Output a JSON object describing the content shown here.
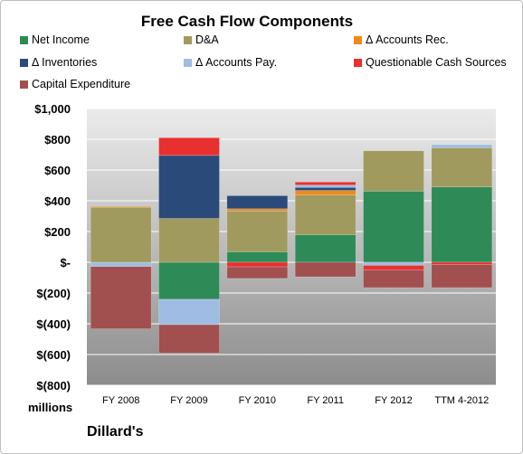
{
  "chart_data": {
    "type": "bar",
    "stacked": true,
    "title": "Free Cash Flow Components",
    "units_label": "millions",
    "source_label": "Dillard's",
    "categories": [
      "FY 2008",
      "FY 2009",
      "FY 2010",
      "FY 2011",
      "FY 2012",
      "TTM 4-2012"
    ],
    "ylim": [
      -800,
      1000
    ],
    "yticks": [
      -800,
      -600,
      -400,
      -200,
      0,
      200,
      400,
      600,
      800,
      1000
    ],
    "ytick_labels": [
      "$(800)",
      "$(600)",
      "$(400)",
      "$(200)",
      "$-",
      "$200",
      "$400",
      "$600",
      "$800",
      "$1,000"
    ],
    "grid": true,
    "legend_position": "top",
    "series": [
      {
        "name": "Net Income",
        "color": "#2e8b57",
        "values": [
          -3,
          -241,
          68,
          179,
          463,
          490
        ]
      },
      {
        "name": "D&A",
        "color": "#a09a5e",
        "values": [
          358,
          285,
          265,
          258,
          262,
          255
        ]
      },
      {
        "name": "Δ Accounts Rec.",
        "color": "#ee8a1c",
        "values": [
          5,
          0,
          15,
          30,
          0,
          0
        ]
      },
      {
        "name": "Δ Inventories",
        "color": "#2a4a7a",
        "values": [
          0,
          410,
          85,
          20,
          0,
          0
        ]
      },
      {
        "name": "Δ Accounts Pay.",
        "color": "#9fbde3",
        "values": [
          -25,
          -165,
          0,
          15,
          -20,
          20
        ]
      },
      {
        "name": "Questionable Cash Sources",
        "color": "#e8302f",
        "values": [
          0,
          115,
          -30,
          20,
          -30,
          -15
        ]
      },
      {
        "name": "Capital Expenditure",
        "color": "#a14f4f",
        "values": [
          -405,
          -185,
          -75,
          -95,
          -115,
          -150
        ]
      }
    ]
  }
}
